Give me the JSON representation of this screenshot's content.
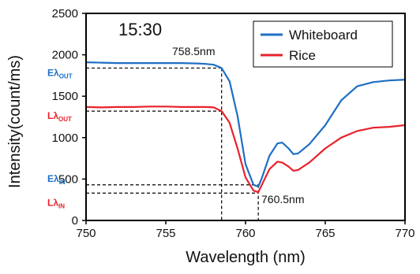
{
  "chart_data": {
    "type": "line",
    "title": "",
    "xlabel": "Wavelength (nm)",
    "ylabel": "Intensity(count/ms)",
    "xlim": [
      750,
      770
    ],
    "ylim": [
      0,
      2500
    ],
    "xticks": [
      "750",
      "755",
      "760",
      "765",
      "770"
    ],
    "yticks": [
      "0",
      "500",
      "1000",
      "1500",
      "2000",
      "2500"
    ],
    "grid": false,
    "legend": "top-right",
    "colors": {
      "whiteboard": "#1f6fc4",
      "rice": "#e8222c",
      "axis": "#000000"
    },
    "series": [
      {
        "name": "Whiteboard",
        "x": [
          750,
          751,
          752,
          753,
          754,
          755,
          756,
          757,
          757.5,
          758,
          758.5,
          759,
          759.5,
          760,
          760.5,
          760.8,
          761,
          761.5,
          762,
          762.3,
          762.7,
          763,
          763.3,
          764,
          765,
          766,
          767,
          768,
          769,
          770
        ],
        "values": [
          1910,
          1905,
          1900,
          1900,
          1900,
          1900,
          1900,
          1895,
          1890,
          1880,
          1840,
          1680,
          1260,
          680,
          430,
          410,
          500,
          780,
          930,
          940,
          870,
          800,
          810,
          920,
          1150,
          1450,
          1620,
          1670,
          1690,
          1700
        ]
      },
      {
        "name": "Rice",
        "x": [
          750,
          751,
          752,
          753,
          754,
          755,
          756,
          757,
          757.5,
          758,
          758.5,
          759,
          759.5,
          760,
          760.5,
          760.8,
          761,
          761.5,
          762,
          762.3,
          762.7,
          763,
          763.3,
          764,
          765,
          766,
          767,
          768,
          769,
          770
        ],
        "values": [
          1370,
          1365,
          1370,
          1370,
          1375,
          1375,
          1370,
          1370,
          1370,
          1365,
          1320,
          1180,
          870,
          520,
          360,
          340,
          420,
          620,
          710,
          700,
          650,
          600,
          610,
          700,
          870,
          1000,
          1080,
          1120,
          1130,
          1150
        ]
      }
    ],
    "annotations": {
      "time": "15:30",
      "peak_out": {
        "label": "758.5nm",
        "x": 758.5
      },
      "peak_in": {
        "label": "760.5nm",
        "x": 760.8
      },
      "levels": [
        {
          "main": "Eλ",
          "sub": "OUT",
          "y": 1840,
          "color": "#1f6fc4"
        },
        {
          "main": "Lλ",
          "sub": "OUT",
          "y": 1320,
          "color": "#e8222c"
        },
        {
          "main": "Eλ",
          "sub": "IN",
          "y": 430,
          "color": "#1f6fc4"
        },
        {
          "main": "Lλ",
          "sub": "IN",
          "y": 330,
          "color": "#e8222c"
        }
      ]
    }
  }
}
